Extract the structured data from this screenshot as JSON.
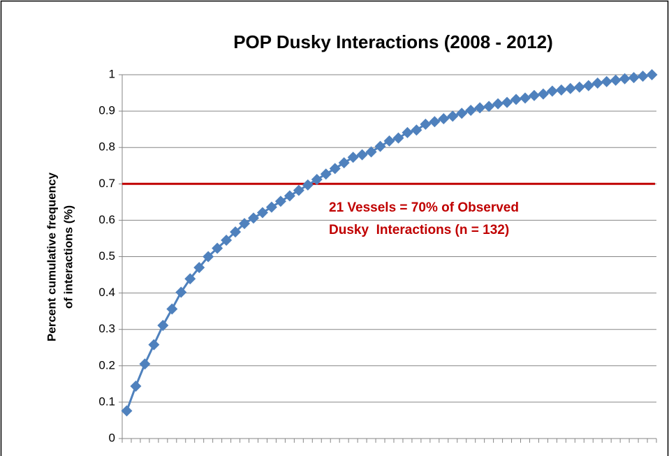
{
  "chart_data": {
    "type": "line",
    "title": "POP Dusky Interactions (2008 - 2012)",
    "y_label": [
      "Percent cumulative frequency",
      "of interactions (%)"
    ],
    "categories": [
      null,
      null,
      null,
      null,
      null,
      null,
      null,
      null,
      null,
      null,
      null,
      null,
      null,
      null,
      null,
      null,
      null,
      null,
      null,
      null,
      null,
      null,
      null,
      null,
      null,
      null,
      null,
      null,
      null,
      null,
      null,
      null,
      null,
      null,
      null,
      null,
      null,
      null,
      null,
      null,
      null,
      null,
      null,
      null,
      null,
      null,
      null,
      null,
      null,
      null,
      null,
      null,
      null,
      null,
      null,
      null,
      null,
      null,
      null
    ],
    "series": [
      {
        "color": "#4f81bd",
        "marker": "diamond",
        "values": [
          0.076,
          0.144,
          0.205,
          0.258,
          0.311,
          0.356,
          0.402,
          0.439,
          0.47,
          0.5,
          0.523,
          0.545,
          0.568,
          0.591,
          0.606,
          0.621,
          0.636,
          0.652,
          0.667,
          0.682,
          0.697,
          0.712,
          0.727,
          0.742,
          0.758,
          0.773,
          0.78,
          0.788,
          0.803,
          0.818,
          0.826,
          0.841,
          0.848,
          0.864,
          0.871,
          0.879,
          0.886,
          0.894,
          0.902,
          0.909,
          0.913,
          0.92,
          0.924,
          0.932,
          0.936,
          0.943,
          0.947,
          0.955,
          0.958,
          0.962,
          0.966,
          0.97,
          0.977,
          0.981,
          0.985,
          0.989,
          0.992,
          0.996,
          1
        ]
      }
    ],
    "reference_line": {
      "value": 0.7,
      "color": "#c00000"
    },
    "annotation": [
      "21 Vessels = 70% of Observed",
      "Dusky  Interactions (n = 132)"
    ],
    "ylim": [
      0,
      1
    ],
    "yticks": [
      0,
      0.1,
      0.2,
      0.3,
      0.4,
      0.5,
      0.6,
      0.7,
      0.8,
      0.9,
      1
    ],
    "grid": true
  }
}
